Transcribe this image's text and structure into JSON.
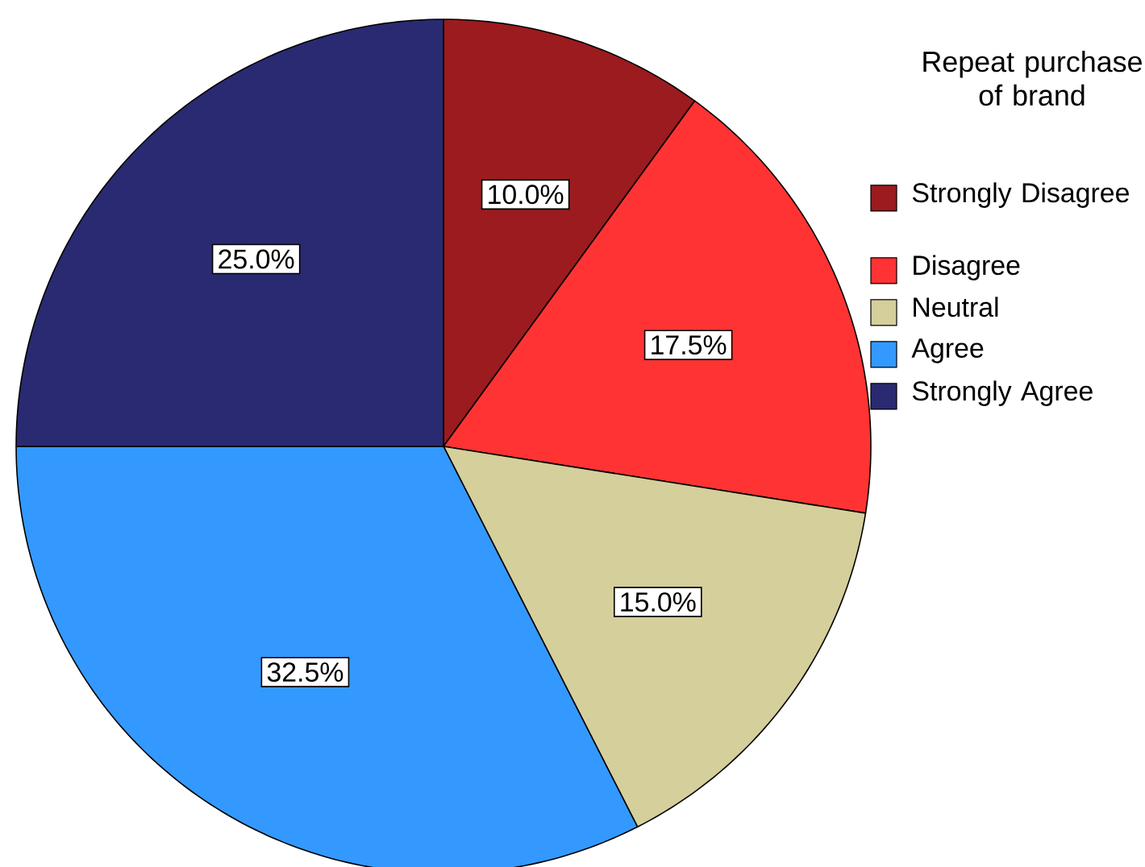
{
  "chart_data": {
    "type": "pie",
    "legend_title": "Repeat purchase of brand",
    "categories": [
      "Strongly Disagree",
      "Disagree",
      "Neutral",
      "Agree",
      "Strongly Agree"
    ],
    "values": [
      10,
      17.5,
      15,
      32.5,
      25
    ],
    "value_labels": [
      "10.0%",
      "17.5%",
      "15.0%",
      "32.5%",
      "25.0%"
    ],
    "colors": [
      "#9b1b1e",
      "#ff3333",
      "#d4cf9b",
      "#3399ff",
      "#2a2a72"
    ],
    "legend": "right"
  }
}
